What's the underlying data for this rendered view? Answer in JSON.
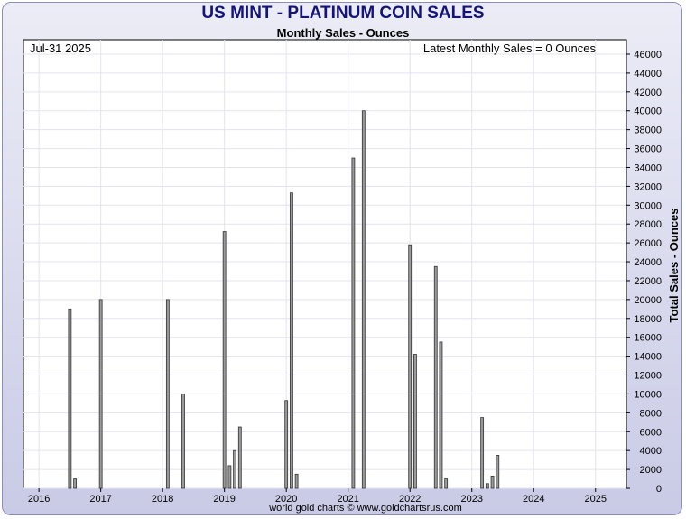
{
  "header": {
    "title": "US MINT - PLATINUM COIN SALES",
    "subtitle": "Monthly Sales - Ounces"
  },
  "annotations": {
    "date": "Jul-31  2025",
    "latest": "Latest Monthly Sales = 0 Ounces"
  },
  "footer": {
    "credit": "world gold charts © www.goldchartsrus.com"
  },
  "colors": {
    "bar_fill": "#9a9a9a",
    "bar_edge": "#333333",
    "grid": "#e3e3ef",
    "title": "#14147a"
  },
  "chart_data": {
    "type": "bar",
    "ylabel": "Total Sales - Ounces",
    "ylim": [
      0,
      46000
    ],
    "y_ticks": [
      0,
      2000,
      4000,
      6000,
      8000,
      10000,
      12000,
      14000,
      16000,
      18000,
      20000,
      22000,
      24000,
      26000,
      28000,
      30000,
      32000,
      34000,
      36000,
      38000,
      40000,
      42000,
      44000,
      46000
    ],
    "x_ticks": [
      "2016",
      "2017",
      "2018",
      "2019",
      "2020",
      "2021",
      "2022",
      "2023",
      "2024",
      "2025"
    ],
    "x_range": [
      "2015-10",
      "2025-07"
    ],
    "grid": true,
    "bars": [
      {
        "month": "2016-07",
        "value": 19000
      },
      {
        "month": "2016-08",
        "value": 1000
      },
      {
        "month": "2017-01",
        "value": 20000
      },
      {
        "month": "2018-02",
        "value": 20000
      },
      {
        "month": "2018-05",
        "value": 10000
      },
      {
        "month": "2019-01",
        "value": 27200
      },
      {
        "month": "2019-02",
        "value": 2400
      },
      {
        "month": "2019-03",
        "value": 4000
      },
      {
        "month": "2019-04",
        "value": 6500
      },
      {
        "month": "2020-01",
        "value": 9300
      },
      {
        "month": "2020-02",
        "value": 31300
      },
      {
        "month": "2020-03",
        "value": 1500
      },
      {
        "month": "2021-02",
        "value": 35000
      },
      {
        "month": "2021-04",
        "value": 40000
      },
      {
        "month": "2022-01",
        "value": 25800
      },
      {
        "month": "2022-02",
        "value": 14200
      },
      {
        "month": "2022-06",
        "value": 23500
      },
      {
        "month": "2022-07",
        "value": 15500
      },
      {
        "month": "2022-08",
        "value": 1000
      },
      {
        "month": "2023-03",
        "value": 7500
      },
      {
        "month": "2023-04",
        "value": 500
      },
      {
        "month": "2023-05",
        "value": 1300
      },
      {
        "month": "2023-06",
        "value": 3500
      }
    ]
  }
}
